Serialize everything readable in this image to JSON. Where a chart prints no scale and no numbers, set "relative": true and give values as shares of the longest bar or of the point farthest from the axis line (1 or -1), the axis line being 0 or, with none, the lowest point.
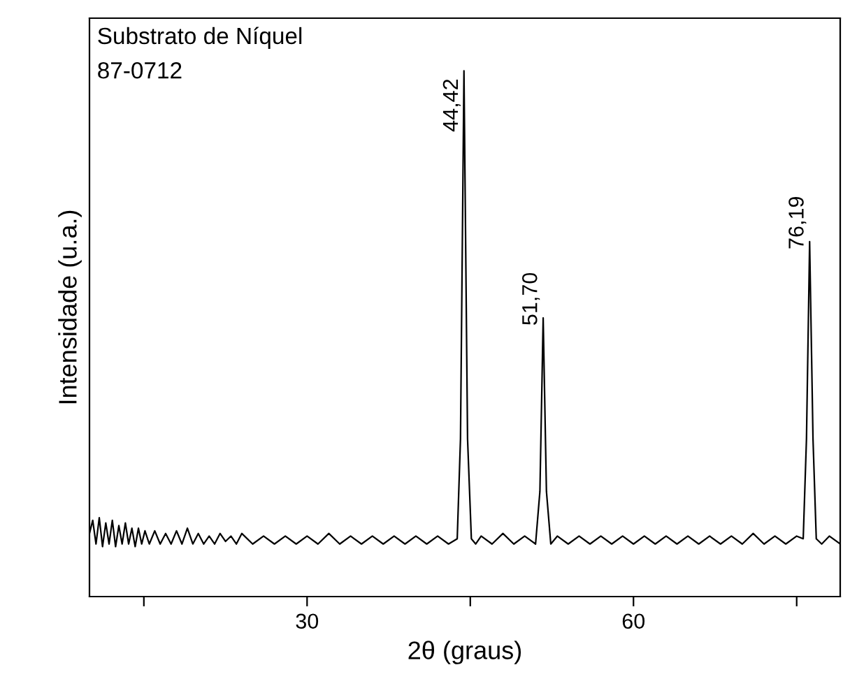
{
  "chart_data": {
    "type": "line",
    "relative": true,
    "title": "Substrato de Níquel",
    "subtitle": "87-0712",
    "xlabel": "2θ (graus)",
    "ylabel": "Intensidade (u.a.)",
    "xlim": [
      10,
      79
    ],
    "xticks": [
      {
        "value": 15,
        "label": null
      },
      30,
      {
        "value": 45,
        "label": null
      },
      60,
      {
        "value": 75,
        "label": null
      }
    ],
    "tick_labels": "x",
    "grid": false,
    "legend": false,
    "marker": "none",
    "line_style": "solid",
    "series": [
      {
        "color": "#000000",
        "x": [
          10,
          10.3,
          10.6,
          10.9,
          11.2,
          11.5,
          11.8,
          12.1,
          12.4,
          12.7,
          13.0,
          13.3,
          13.6,
          13.9,
          14.2,
          14.5,
          14.8,
          15.1,
          15.5,
          16.0,
          16.5,
          17.0,
          17.5,
          18.0,
          18.5,
          19.0,
          19.5,
          20.0,
          20.5,
          21.0,
          21.5,
          22.0,
          22.5,
          23.0,
          23.5,
          24.0,
          25.0,
          26.0,
          27.0,
          28.0,
          29.0,
          30.0,
          31.0,
          32.0,
          33.0,
          34.0,
          35.0,
          36.0,
          37.0,
          38.0,
          39.0,
          40.0,
          41.0,
          42.0,
          43.0,
          43.8,
          44.1,
          44.42,
          44.75,
          45.1,
          45.5,
          46.0,
          47.0,
          48.0,
          49.0,
          50.0,
          51.0,
          51.4,
          51.7,
          52.0,
          52.4,
          53.0,
          54.0,
          55.0,
          56.0,
          57.0,
          58.0,
          59.0,
          60.0,
          61.0,
          62.0,
          63.0,
          64.0,
          65.0,
          66.0,
          67.0,
          68.0,
          69.0,
          70.0,
          71.0,
          72.0,
          73.0,
          74.0,
          75.0,
          75.6,
          75.9,
          76.19,
          76.5,
          76.8,
          77.3,
          78.0,
          79.0
        ],
        "values": [
          0.12,
          0.145,
          0.1,
          0.15,
          0.095,
          0.14,
          0.1,
          0.145,
          0.095,
          0.135,
          0.1,
          0.14,
          0.1,
          0.13,
          0.095,
          0.13,
          0.1,
          0.125,
          0.1,
          0.125,
          0.1,
          0.12,
          0.1,
          0.125,
          0.1,
          0.13,
          0.1,
          0.12,
          0.1,
          0.115,
          0.1,
          0.12,
          0.105,
          0.115,
          0.1,
          0.12,
          0.1,
          0.115,
          0.1,
          0.115,
          0.1,
          0.115,
          0.1,
          0.12,
          0.1,
          0.115,
          0.1,
          0.115,
          0.1,
          0.115,
          0.1,
          0.115,
          0.1,
          0.115,
          0.1,
          0.11,
          0.3,
          1,
          0.3,
          0.11,
          0.1,
          0.115,
          0.1,
          0.12,
          0.1,
          0.115,
          0.1,
          0.2,
          0.53,
          0.2,
          0.1,
          0.115,
          0.1,
          0.115,
          0.1,
          0.115,
          0.1,
          0.115,
          0.1,
          0.115,
          0.1,
          0.115,
          0.1,
          0.115,
          0.1,
          0.115,
          0.1,
          0.115,
          0.1,
          0.12,
          0.1,
          0.115,
          0.1,
          0.115,
          0.11,
          0.3,
          0.675,
          0.3,
          0.11,
          0.1,
          0.115,
          0.1
        ]
      }
    ],
    "annotations": [
      {
        "text": "44,42",
        "x": 44.42,
        "y": 1
      },
      {
        "text": "51,70",
        "x": 51.7,
        "y": 0.53
      },
      {
        "text": "76,19",
        "x": 76.19,
        "y": 0.675
      }
    ]
  }
}
